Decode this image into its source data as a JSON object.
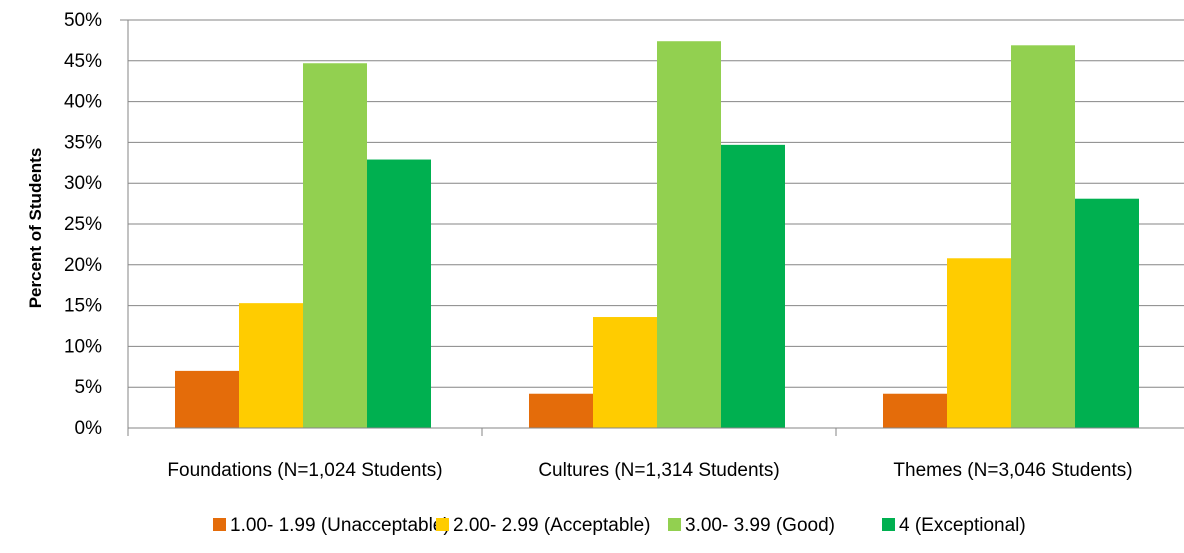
{
  "chart_data": {
    "type": "bar",
    "title": "",
    "xlabel": "",
    "ylabel": "Percent of Students",
    "ylim": [
      0,
      50
    ],
    "y_tick_step": 5,
    "y_tick_format": "percent",
    "grid": true,
    "legend_position": "bottom",
    "categories": [
      "Foundations (N=1,024 Students)",
      "Cultures (N=1,314 Students)",
      "Themes (N=3,046 Students)"
    ],
    "series": [
      {
        "name": "1.00- 1.99 (Unacceptable)",
        "color": "#E46C0A",
        "values": [
          7.0,
          4.2,
          4.2
        ]
      },
      {
        "name": "2.00- 2.99 (Acceptable)",
        "color": "#FFCC00",
        "values": [
          15.3,
          13.6,
          20.8
        ]
      },
      {
        "name": "3.00- 3.99 (Good)",
        "color": "#92D050",
        "values": [
          44.7,
          47.4,
          46.9
        ]
      },
      {
        "name": "4 (Exceptional)",
        "color": "#00B050",
        "values": [
          32.9,
          34.7,
          28.1
        ]
      }
    ]
  }
}
